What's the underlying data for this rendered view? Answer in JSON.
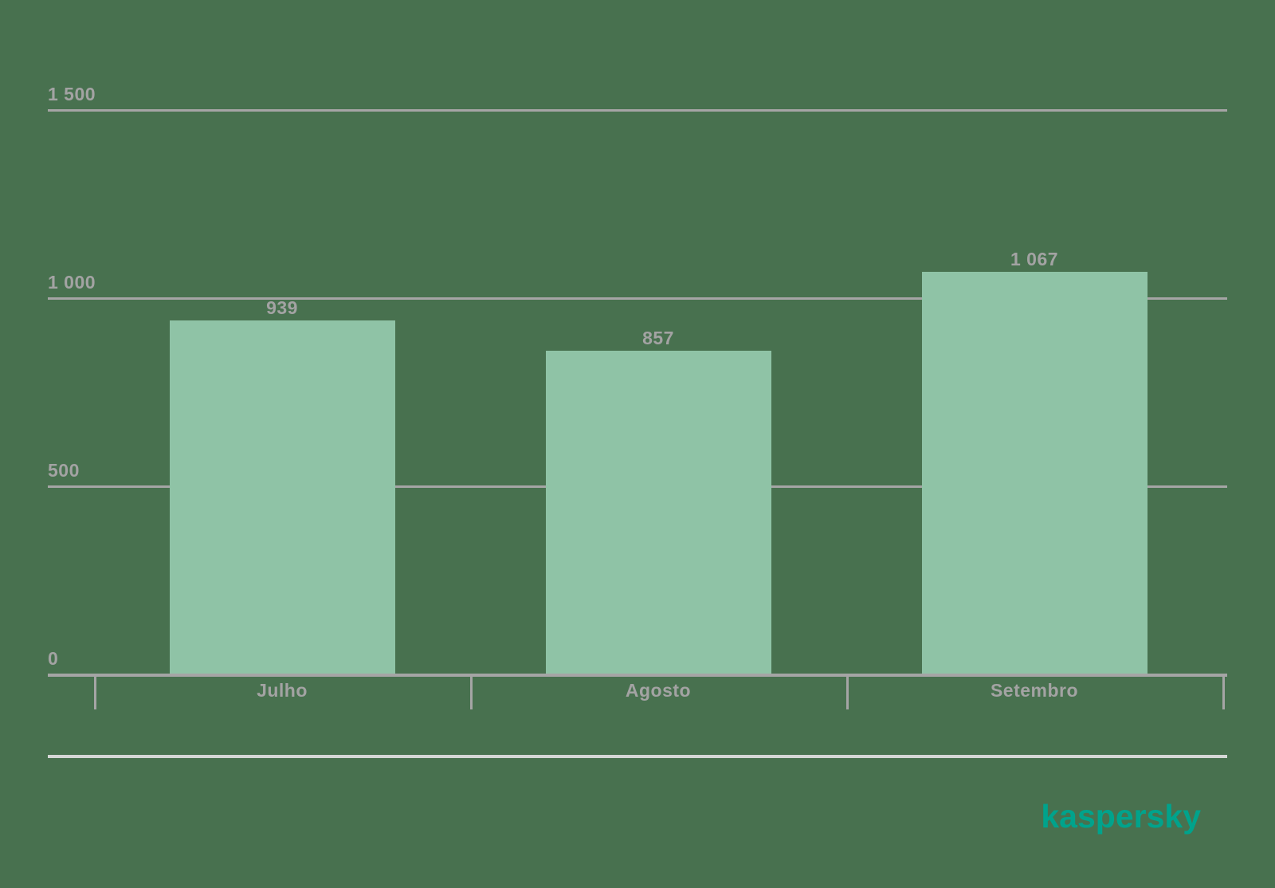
{
  "background_color": "#48714F",
  "chart_data": {
    "type": "bar",
    "title": "",
    "xlabel": "",
    "ylabel": "",
    "categories": [
      "Julho",
      "Agosto",
      "Setembro"
    ],
    "values": [
      939,
      857,
      1067
    ],
    "value_labels": [
      "939",
      "857",
      "1 067"
    ],
    "y_ticks": [
      {
        "value": 1500,
        "label": "1 500"
      },
      {
        "value": 1000,
        "label": "1 000"
      },
      {
        "value": 500,
        "label": "500"
      },
      {
        "value": 0,
        "label": "0"
      }
    ],
    "ylim": [
      0,
      1500
    ],
    "grid": true,
    "legend": false,
    "bar_color": "#8FC3A6",
    "grid_color": "#A5A5A5",
    "label_color": "#A3A3A3"
  },
  "footer": {
    "separator_color": "#D5D7D5",
    "logo_text": "kaspersky",
    "logo_color": "#00A38C"
  }
}
